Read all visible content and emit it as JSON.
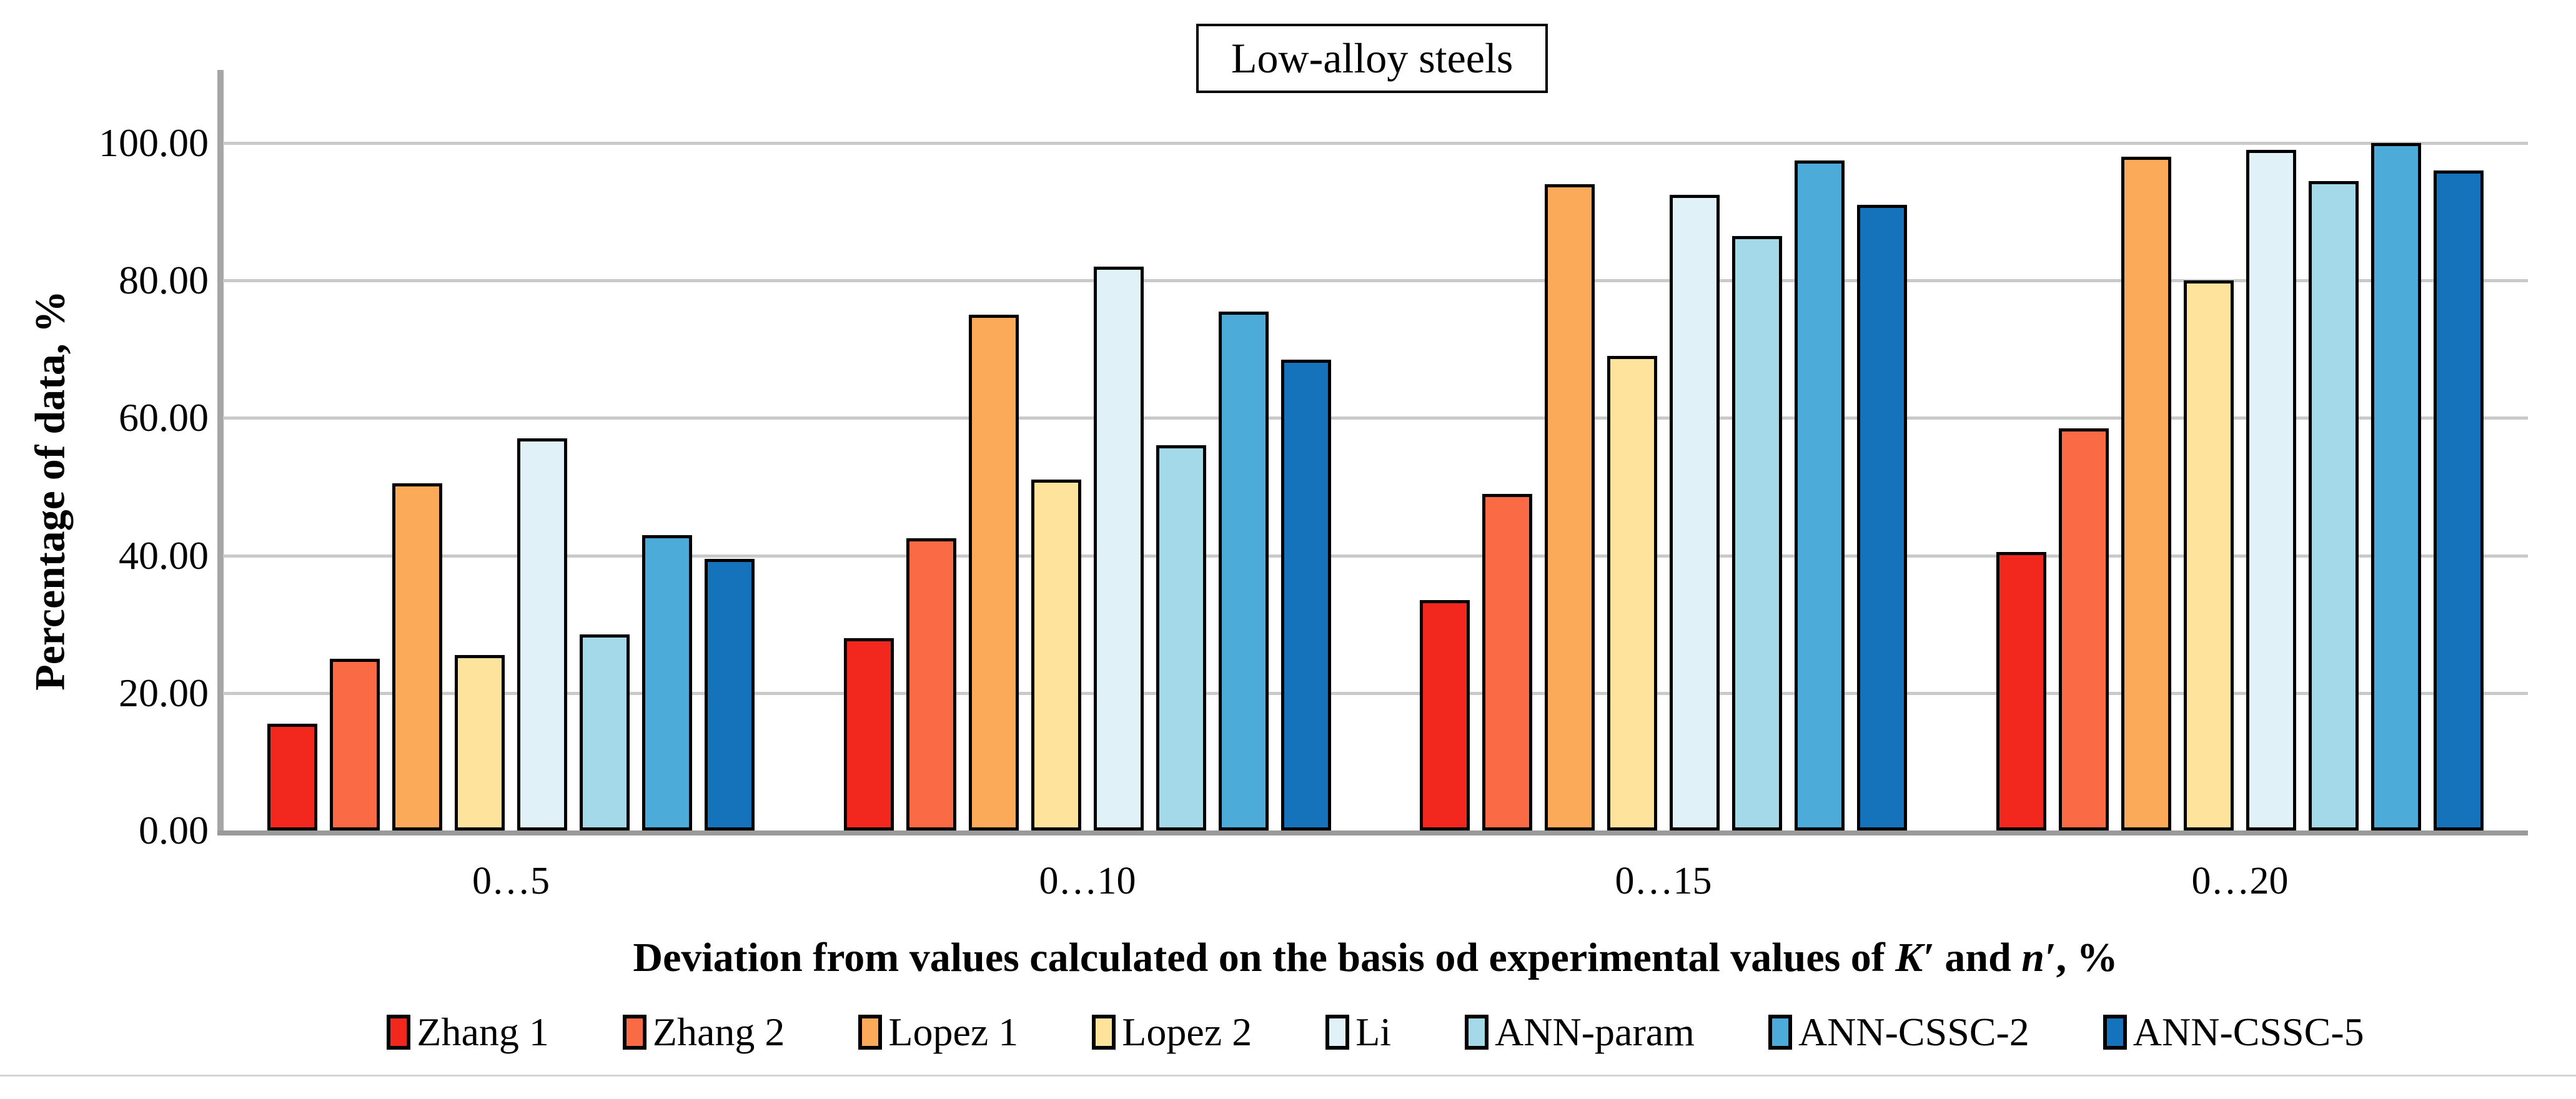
{
  "chart_data": {
    "type": "bar",
    "title": "Low-alloy steels",
    "ylabel": "Percentage of data, %",
    "xlabel": "Deviation from values calculated on the basis od experimental values of K′ and n′, %",
    "xlabel_segments": [
      {
        "text": "Deviation from values calculated on the basis od experimental values of ",
        "italic": false
      },
      {
        "text": "K′",
        "italic": true
      },
      {
        "text": " and ",
        "italic": false
      },
      {
        "text": "n′",
        "italic": true
      },
      {
        "text": ", %",
        "italic": false
      }
    ],
    "categories": [
      "0…5",
      "0…10",
      "0…15",
      "0…20"
    ],
    "series": [
      {
        "name": "Zhang 1",
        "color": "#f2281f",
        "values": [
          15.5,
          28.0,
          33.5,
          40.5
        ]
      },
      {
        "name": "Zhang 2",
        "color": "#fa6a44",
        "values": [
          25.0,
          42.5,
          49.0,
          58.5
        ]
      },
      {
        "name": "Lopez 1",
        "color": "#fbaa59",
        "values": [
          50.5,
          75.0,
          94.0,
          98.0
        ]
      },
      {
        "name": "Lopez 2",
        "color": "#fde39b",
        "values": [
          25.5,
          51.0,
          69.0,
          80.0
        ]
      },
      {
        "name": "Li",
        "color": "#e0f1f8",
        "values": [
          57.0,
          82.0,
          92.5,
          99.0
        ]
      },
      {
        "name": "ANN-param",
        "color": "#a3d9e9",
        "values": [
          28.5,
          56.0,
          86.5,
          94.5
        ]
      },
      {
        "name": "ANN-CSSC-2",
        "color": "#4dabd9",
        "values": [
          43.0,
          75.5,
          97.5,
          100.0
        ]
      },
      {
        "name": "ANN-CSSC-5",
        "color": "#1473ba",
        "values": [
          39.5,
          68.5,
          91.0,
          96.0
        ]
      }
    ],
    "ylim": [
      0,
      100
    ],
    "y_tick_step": 20,
    "y_tick_labels": [
      "0.00",
      "20.00",
      "40.00",
      "60.00",
      "80.00",
      "100.00"
    ],
    "grid": true,
    "legend_position": "bottom",
    "colors": {
      "gridline": "#c9c9c9",
      "y_axis_line": "#a6a6a6",
      "x_axis_line": "#9a9a9a",
      "bar_border": "#000000"
    }
  }
}
